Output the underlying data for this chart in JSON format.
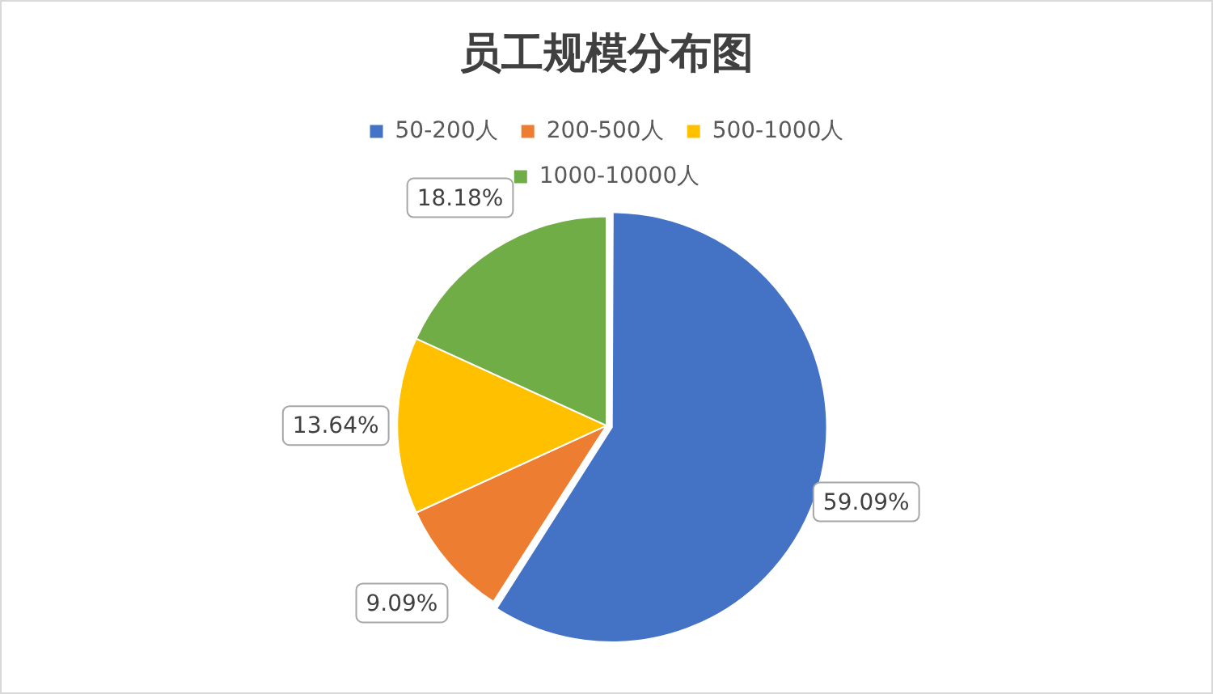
{
  "chart_data": {
    "type": "pie",
    "title": "员工规模分布图",
    "categories": [
      "50-200人",
      "200-500人",
      "500-1000人",
      "1000-10000人"
    ],
    "values": [
      59.09,
      9.09,
      13.64,
      18.18
    ],
    "colors": [
      "#4472c4",
      "#ed7d31",
      "#ffc000",
      "#70ad47"
    ],
    "value_labels": [
      "59.09%",
      "9.09%",
      "13.64%",
      "18.18%"
    ],
    "legend": "top"
  }
}
